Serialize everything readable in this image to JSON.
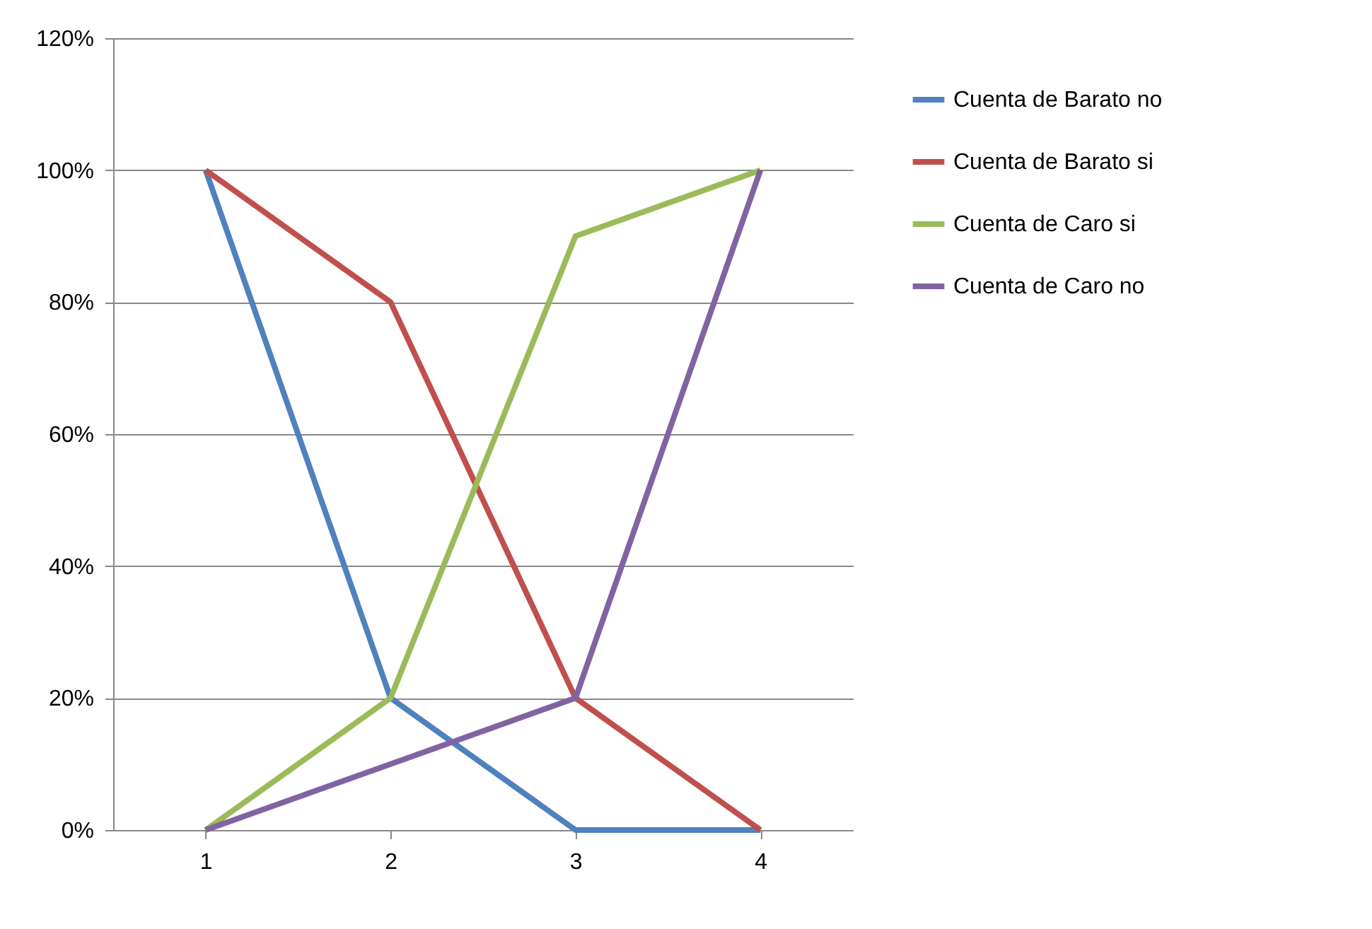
{
  "chart_data": {
    "type": "line",
    "categories": [
      "1",
      "2",
      "3",
      "4"
    ],
    "series": [
      {
        "name": "Cuenta de Barato no",
        "color": "#4f81bd",
        "values": [
          100,
          20,
          0,
          0
        ]
      },
      {
        "name": "Cuenta de Barato si",
        "color": "#c0504d",
        "values": [
          100,
          80,
          20,
          0
        ]
      },
      {
        "name": "Cuenta de Caro si",
        "color": "#9bbb59",
        "values": [
          0,
          20,
          90,
          100
        ]
      },
      {
        "name": "Cuenta de Caro no",
        "color": "#8064a2",
        "values": [
          0,
          10,
          20,
          100
        ]
      }
    ],
    "ylim": [
      0,
      120
    ],
    "yticks": [
      {
        "value": 0,
        "label": "0%"
      },
      {
        "value": 20,
        "label": "20%"
      },
      {
        "value": 40,
        "label": "40%"
      },
      {
        "value": 60,
        "label": "60%"
      },
      {
        "value": 80,
        "label": "80%"
      },
      {
        "value": 100,
        "label": "100%"
      },
      {
        "value": 120,
        "label": "120%"
      }
    ],
    "grid": "y",
    "legend": "right",
    "marker": "none",
    "line_style": "solid"
  }
}
